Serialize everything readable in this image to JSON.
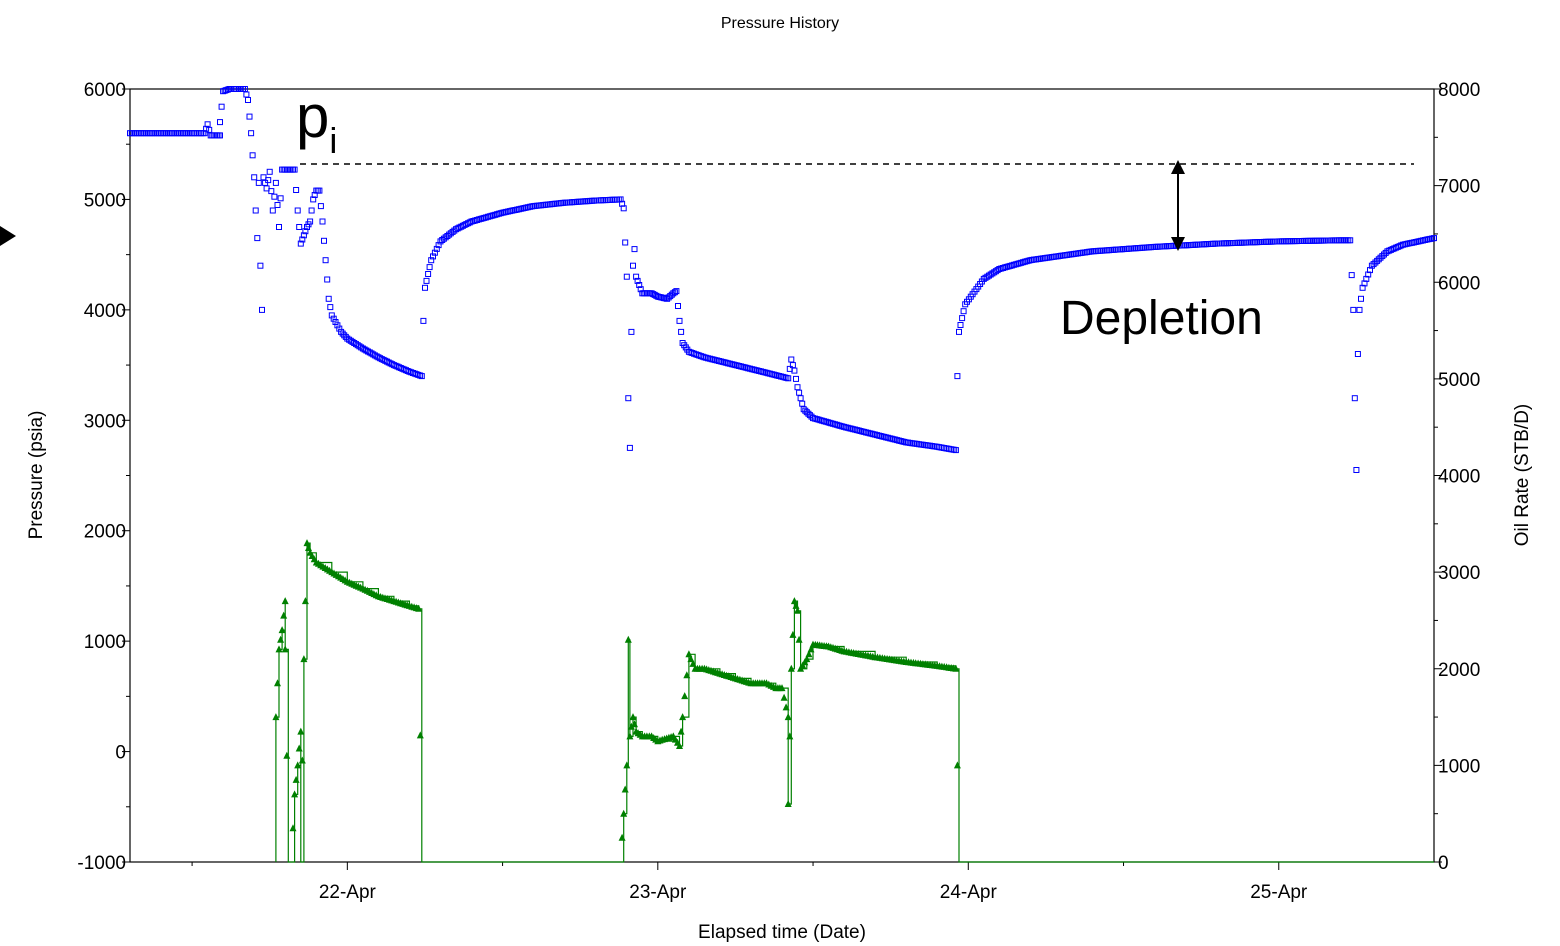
{
  "chart_data": {
    "type": "scatter",
    "title": "Pressure History",
    "xlabel": "Elapsed time (Date)",
    "ylabel": "Pressure (psia)",
    "y2label": "Oil Rate (STB/D)",
    "xlim": [
      -0.7,
      3.5
    ],
    "ylim": [
      -1000,
      6000
    ],
    "y2lim": [
      0,
      8000
    ],
    "x_ticks": [
      {
        "value": 0,
        "label": "22-Apr"
      },
      {
        "value": 1,
        "label": "23-Apr"
      },
      {
        "value": 2,
        "label": "24-Apr"
      },
      {
        "value": 3,
        "label": "25-Apr"
      }
    ],
    "y_ticks": [
      -1000,
      0,
      1000,
      2000,
      3000,
      4000,
      5000,
      6000
    ],
    "y2_ticks": [
      0,
      1000,
      2000,
      3000,
      4000,
      5000,
      6000,
      7000,
      8000
    ],
    "grid": false,
    "series": [
      {
        "axis": "left",
        "color": "#0000ff",
        "marker": "square",
        "values": [
          [
            -0.7,
            5600
          ],
          [
            -0.5,
            5600
          ],
          [
            -0.46,
            5600
          ],
          [
            -0.45,
            5680
          ],
          [
            -0.44,
            5580
          ],
          [
            -0.41,
            5580
          ],
          [
            -0.41,
            5700
          ],
          [
            -0.4,
            5980
          ],
          [
            -0.38,
            6000
          ],
          [
            -0.36,
            6000
          ],
          [
            -0.33,
            6000
          ],
          [
            -0.32,
            5900
          ],
          [
            -0.31,
            5600
          ],
          [
            -0.3,
            5200
          ],
          [
            -0.295,
            4900
          ],
          [
            -0.29,
            4650
          ],
          [
            -0.285,
            5150
          ],
          [
            -0.28,
            4400
          ],
          [
            -0.275,
            4000
          ],
          [
            -0.27,
            5200
          ],
          [
            -0.26,
            5100
          ],
          [
            -0.25,
            5250
          ],
          [
            -0.24,
            4900
          ],
          [
            -0.23,
            5150
          ],
          [
            -0.22,
            4750
          ],
          [
            -0.21,
            5270
          ],
          [
            -0.19,
            5270
          ],
          [
            -0.17,
            5270
          ],
          [
            -0.16,
            4900
          ],
          [
            -0.15,
            4600
          ],
          [
            -0.13,
            4750
          ],
          [
            -0.12,
            4800
          ],
          [
            -0.11,
            5000
          ],
          [
            -0.1,
            5080
          ],
          [
            -0.09,
            5080
          ],
          [
            -0.08,
            4800
          ],
          [
            -0.07,
            4450
          ],
          [
            -0.06,
            4100
          ],
          [
            -0.05,
            3950
          ],
          [
            -0.02,
            3800
          ],
          [
            0.0,
            3740
          ],
          [
            0.05,
            3650
          ],
          [
            0.1,
            3570
          ],
          [
            0.15,
            3500
          ],
          [
            0.2,
            3440
          ],
          [
            0.24,
            3400
          ],
          [
            0.245,
            3900
          ],
          [
            0.25,
            4200
          ],
          [
            0.27,
            4450
          ],
          [
            0.3,
            4620
          ],
          [
            0.35,
            4730
          ],
          [
            0.4,
            4800
          ],
          [
            0.5,
            4880
          ],
          [
            0.6,
            4940
          ],
          [
            0.7,
            4970
          ],
          [
            0.8,
            4990
          ],
          [
            0.88,
            5000
          ],
          [
            0.89,
            4920
          ],
          [
            0.9,
            4300
          ],
          [
            0.905,
            3200
          ],
          [
            0.91,
            2750
          ],
          [
            0.915,
            3800
          ],
          [
            0.92,
            4400
          ],
          [
            0.925,
            4550
          ],
          [
            0.93,
            4300
          ],
          [
            0.95,
            4150
          ],
          [
            0.98,
            4150
          ],
          [
            1.0,
            4120
          ],
          [
            1.03,
            4100
          ],
          [
            1.05,
            4150
          ],
          [
            1.06,
            4170
          ],
          [
            1.07,
            3900
          ],
          [
            1.08,
            3700
          ],
          [
            1.1,
            3620
          ],
          [
            1.15,
            3570
          ],
          [
            1.25,
            3500
          ],
          [
            1.35,
            3430
          ],
          [
            1.42,
            3380
          ],
          [
            1.43,
            3550
          ],
          [
            1.44,
            3450
          ],
          [
            1.45,
            3300
          ],
          [
            1.47,
            3100
          ],
          [
            1.5,
            3020
          ],
          [
            1.6,
            2940
          ],
          [
            1.7,
            2870
          ],
          [
            1.8,
            2800
          ],
          [
            1.9,
            2760
          ],
          [
            1.96,
            2730
          ],
          [
            1.965,
            3400
          ],
          [
            1.97,
            3800
          ],
          [
            1.99,
            4050
          ],
          [
            2.05,
            4280
          ],
          [
            2.1,
            4370
          ],
          [
            2.2,
            4450
          ],
          [
            2.4,
            4530
          ],
          [
            2.6,
            4570
          ],
          [
            2.8,
            4600
          ],
          [
            3.0,
            4620
          ],
          [
            3.2,
            4630
          ],
          [
            3.23,
            4630
          ],
          [
            3.24,
            4000
          ],
          [
            3.245,
            3200
          ],
          [
            3.25,
            2550
          ],
          [
            3.255,
            3600
          ],
          [
            3.26,
            4000
          ],
          [
            3.27,
            4200
          ],
          [
            3.3,
            4400
          ],
          [
            3.35,
            4530
          ],
          [
            3.4,
            4590
          ],
          [
            3.5,
            4650
          ]
        ]
      },
      {
        "axis": "right",
        "color": "#008000",
        "marker": "triangle",
        "values": [
          [
            -0.23,
            0
          ],
          [
            -0.23,
            1500
          ],
          [
            -0.22,
            2200
          ],
          [
            -0.21,
            2400
          ],
          [
            -0.2,
            2700
          ],
          [
            -0.2,
            2200
          ],
          [
            -0.19,
            0
          ],
          [
            -0.18,
            0
          ],
          [
            -0.17,
            700
          ],
          [
            -0.16,
            1000
          ],
          [
            -0.15,
            1350
          ],
          [
            -0.15,
            0
          ],
          [
            -0.14,
            2100
          ],
          [
            -0.13,
            3300
          ],
          [
            -0.12,
            3200
          ],
          [
            -0.1,
            3100
          ],
          [
            -0.05,
            3000
          ],
          [
            0.0,
            2900
          ],
          [
            0.05,
            2830
          ],
          [
            0.1,
            2750
          ],
          [
            0.15,
            2700
          ],
          [
            0.2,
            2650
          ],
          [
            0.23,
            2620
          ],
          [
            0.24,
            0
          ],
          [
            0.85,
            0
          ],
          [
            0.88,
            0
          ],
          [
            0.89,
            500
          ],
          [
            0.9,
            1000
          ],
          [
            0.905,
            2300
          ],
          [
            0.91,
            1300
          ],
          [
            0.92,
            1500
          ],
          [
            0.93,
            1350
          ],
          [
            0.95,
            1300
          ],
          [
            0.98,
            1300
          ],
          [
            1.0,
            1250
          ],
          [
            1.05,
            1300
          ],
          [
            1.07,
            1200
          ],
          [
            1.08,
            1500
          ],
          [
            1.1,
            2150
          ],
          [
            1.12,
            2000
          ],
          [
            1.15,
            2000
          ],
          [
            1.2,
            1950
          ],
          [
            1.25,
            1900
          ],
          [
            1.3,
            1850
          ],
          [
            1.35,
            1850
          ],
          [
            1.38,
            1800
          ],
          [
            1.4,
            1800
          ],
          [
            1.42,
            1500
          ],
          [
            1.42,
            600
          ],
          [
            1.43,
            2000
          ],
          [
            1.44,
            2700
          ],
          [
            1.45,
            2600
          ],
          [
            1.46,
            2000
          ],
          [
            1.48,
            2100
          ],
          [
            1.5,
            2250
          ],
          [
            1.55,
            2230
          ],
          [
            1.6,
            2180
          ],
          [
            1.7,
            2120
          ],
          [
            1.8,
            2070
          ],
          [
            1.9,
            2030
          ],
          [
            1.96,
            2000
          ],
          [
            1.97,
            0
          ],
          [
            3.5,
            0
          ]
        ]
      }
    ],
    "annotations": {
      "pi_main": "p",
      "pi_sub": "i",
      "depletion": "Depletion"
    }
  }
}
